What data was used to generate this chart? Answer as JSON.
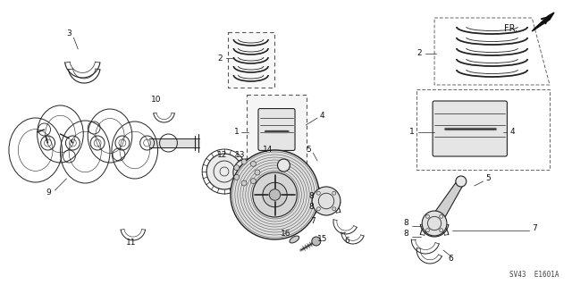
{
  "bg_color": "#ffffff",
  "fig_width": 6.4,
  "fig_height": 3.19,
  "dpi": 100,
  "diagram_code": "SV43  E1601A",
  "fr_label": "FR.",
  "text_color": "#111111",
  "line_color": "#222222",
  "label_fontsize": 6.5
}
